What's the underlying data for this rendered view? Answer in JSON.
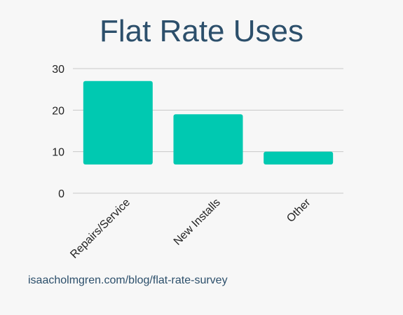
{
  "chart_data": {
    "type": "bar",
    "title": "Flat Rate Uses",
    "categories": [
      "Repairs/Service",
      "New Installs",
      "Other"
    ],
    "values": [
      27,
      19,
      10
    ],
    "ylim": [
      0,
      30
    ],
    "yticks": [
      0,
      10,
      20,
      30
    ],
    "xlabel": "",
    "ylabel": "",
    "grid": true,
    "bar_color": "#00c9b1"
  },
  "footer": {
    "source": "isaacholmgren.com/blog/flat-rate-survey"
  }
}
